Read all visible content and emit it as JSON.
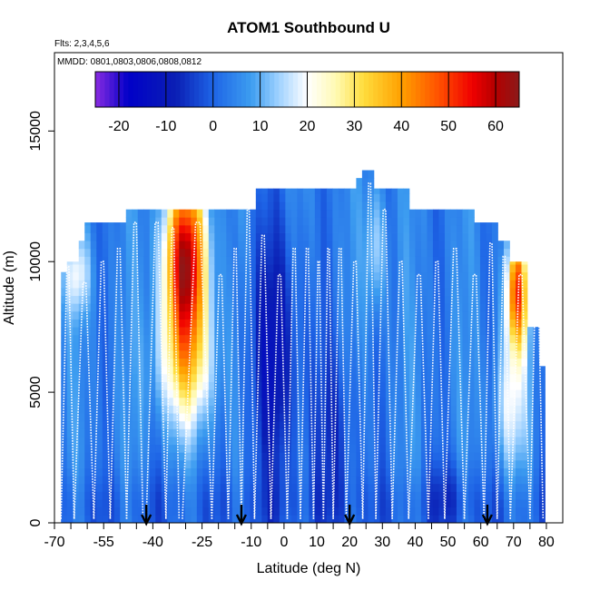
{
  "chart_data": {
    "type": "heatmap",
    "title": "ATOM1 Southbound U",
    "subtitle_flights": "Flts: 2,3,4,5,6",
    "subtitle_dates": "MMDD: 0801,0803,0806,0808,0812",
    "xlabel": "Latitude (deg N)",
    "ylabel": "Altitude (m)",
    "xlim": [
      -70,
      85
    ],
    "ylim": [
      0,
      18000
    ],
    "x_ticks": [
      -70,
      -55,
      -40,
      -25,
      -10,
      0,
      10,
      20,
      30,
      40,
      50,
      60,
      70,
      80
    ],
    "x_minor_ticks": [
      -65,
      -60,
      -50,
      -45,
      -35,
      -30,
      -20,
      -15,
      -5,
      5,
      15,
      25,
      35,
      45,
      55,
      65,
      75
    ],
    "y_ticks": [
      0,
      5000,
      10000,
      15000
    ],
    "colorbar": {
      "range": [
        -25,
        65
      ],
      "ticks": [
        -20,
        -10,
        0,
        10,
        20,
        30,
        40,
        50,
        60
      ],
      "stops": [
        {
          "v": -25,
          "c": "#8a2be2"
        },
        {
          "v": -18,
          "c": "#0000c8"
        },
        {
          "v": -8,
          "c": "#0a1eb4"
        },
        {
          "v": 0,
          "c": "#1e64e6"
        },
        {
          "v": 8,
          "c": "#3c9cf0"
        },
        {
          "v": 14,
          "c": "#a0d2ff"
        },
        {
          "v": 20,
          "c": "#ffffff"
        },
        {
          "v": 26,
          "c": "#fffab4"
        },
        {
          "v": 32,
          "c": "#ffdc3c"
        },
        {
          "v": 40,
          "c": "#ffa000"
        },
        {
          "v": 48,
          "c": "#ff5000"
        },
        {
          "v": 55,
          "c": "#f00000"
        },
        {
          "v": 60,
          "c": "#b40000"
        },
        {
          "v": 65,
          "c": "#8b1a1a"
        }
      ]
    },
    "arrows_latitude": [
      -42,
      -13,
      20,
      62
    ],
    "track_color": "#ffffff",
    "arrow_color": "#000000"
  }
}
